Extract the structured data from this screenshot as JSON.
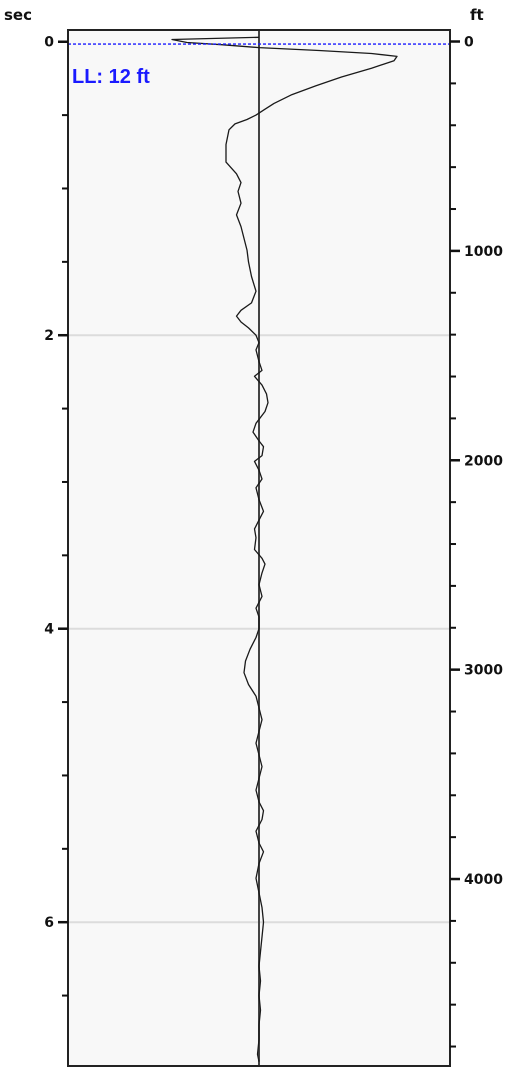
{
  "chart_data": {
    "type": "line",
    "title": "",
    "left_axis": {
      "unit": "sec",
      "range": [
        -0.08,
        6.98
      ],
      "major_ticks": [
        0,
        2,
        4,
        6
      ],
      "minor_ticks": [
        0.5,
        1,
        1.5,
        2.5,
        3,
        3.5,
        4.5,
        5,
        5.5,
        6.5
      ],
      "labels": [
        "0",
        "2",
        "4",
        "6"
      ]
    },
    "right_axis": {
      "unit": "ft",
      "range": [
        -55,
        4893
      ],
      "major_ticks": [
        0,
        1000,
        2000,
        3000,
        4000
      ],
      "minor_ticks": [
        200,
        400,
        600,
        800,
        1200,
        1400,
        1600,
        1800,
        2200,
        2400,
        2600,
        2800,
        3200,
        3400,
        3600,
        3800,
        4200,
        4400,
        4600,
        4800
      ],
      "labels": [
        "0",
        "1000",
        "2000",
        "3000",
        "4000"
      ]
    },
    "gridlines_sec": [
      2,
      4,
      6
    ],
    "center_line": 0,
    "level_line": {
      "depth_ft": 12,
      "label": "LL: 12 ft",
      "color": "#1a1aff"
    },
    "series": [
      {
        "amplitude_range": [
          -1,
          1
        ],
        "points": [
          [
            -0.03,
            0
          ],
          [
            -0.015,
            -0.58
          ],
          [
            0.005,
            -0.48
          ],
          [
            0.02,
            -0.25
          ],
          [
            0.04,
            0.0
          ],
          [
            0.06,
            0.4
          ],
          [
            0.08,
            0.75
          ],
          [
            0.1,
            0.92
          ],
          [
            0.13,
            0.9
          ],
          [
            0.18,
            0.75
          ],
          [
            0.24,
            0.55
          ],
          [
            0.3,
            0.38
          ],
          [
            0.36,
            0.22
          ],
          [
            0.42,
            0.1
          ],
          [
            0.46,
            0.04
          ],
          [
            0.5,
            -0.02
          ],
          [
            0.53,
            -0.08
          ],
          [
            0.56,
            -0.16
          ],
          [
            0.6,
            -0.2
          ],
          [
            0.7,
            -0.22
          ],
          [
            0.82,
            -0.22
          ],
          [
            0.9,
            -0.15
          ],
          [
            0.96,
            -0.12
          ],
          [
            1.02,
            -0.14
          ],
          [
            1.1,
            -0.12
          ],
          [
            1.18,
            -0.15
          ],
          [
            1.26,
            -0.12
          ],
          [
            1.34,
            -0.1
          ],
          [
            1.42,
            -0.08
          ],
          [
            1.5,
            -0.07
          ],
          [
            1.6,
            -0.05
          ],
          [
            1.7,
            -0.02
          ],
          [
            1.78,
            -0.05
          ],
          [
            1.83,
            -0.12
          ],
          [
            1.87,
            -0.15
          ],
          [
            1.91,
            -0.12
          ],
          [
            1.95,
            -0.07
          ],
          [
            2.0,
            -0.02
          ],
          [
            2.05,
            0.0
          ],
          [
            2.1,
            -0.02
          ],
          [
            2.18,
            0.0
          ],
          [
            2.24,
            0.02
          ],
          [
            2.28,
            -0.03
          ],
          [
            2.34,
            0.02
          ],
          [
            2.4,
            0.05
          ],
          [
            2.46,
            0.06
          ],
          [
            2.52,
            0.04
          ],
          [
            2.6,
            -0.02
          ],
          [
            2.66,
            -0.04
          ],
          [
            2.72,
            0.0
          ],
          [
            2.76,
            0.03
          ],
          [
            2.82,
            0.02
          ],
          [
            2.86,
            -0.03
          ],
          [
            2.92,
            0.0
          ],
          [
            2.98,
            0.02
          ],
          [
            3.04,
            -0.02
          ],
          [
            3.12,
            0.0
          ],
          [
            3.2,
            0.03
          ],
          [
            3.26,
            0.0
          ],
          [
            3.32,
            -0.03
          ],
          [
            3.38,
            -0.02
          ],
          [
            3.46,
            -0.03
          ],
          [
            3.52,
            0.02
          ],
          [
            3.56,
            0.04
          ],
          [
            3.62,
            0.02
          ],
          [
            3.7,
            0.0
          ],
          [
            3.78,
            0.02
          ],
          [
            3.86,
            -0.02
          ],
          [
            3.92,
            0.0
          ],
          [
            4.0,
            0.0
          ],
          [
            4.06,
            -0.02
          ],
          [
            4.14,
            -0.06
          ],
          [
            4.22,
            -0.09
          ],
          [
            4.3,
            -0.1
          ],
          [
            4.38,
            -0.07
          ],
          [
            4.46,
            -0.02
          ],
          [
            4.54,
            0.0
          ],
          [
            4.62,
            0.02
          ],
          [
            4.7,
            0.0
          ],
          [
            4.78,
            -0.02
          ],
          [
            4.86,
            0.0
          ],
          [
            4.94,
            0.02
          ],
          [
            5.02,
            0.0
          ],
          [
            5.1,
            -0.02
          ],
          [
            5.18,
            0.0
          ],
          [
            5.24,
            0.03
          ],
          [
            5.3,
            0.02
          ],
          [
            5.38,
            -0.02
          ],
          [
            5.46,
            0.0
          ],
          [
            5.52,
            0.03
          ],
          [
            5.6,
            0.0
          ],
          [
            5.7,
            -0.02
          ],
          [
            5.8,
            0.0
          ],
          [
            5.9,
            0.02
          ],
          [
            6.0,
            0.03
          ],
          [
            6.1,
            0.02
          ],
          [
            6.2,
            0.01
          ],
          [
            6.3,
            0.0
          ],
          [
            6.4,
            0.01
          ],
          [
            6.5,
            0.0
          ],
          [
            6.6,
            0.01
          ],
          [
            6.7,
            0.0
          ],
          [
            6.8,
            0.0
          ],
          [
            6.9,
            -0.01
          ],
          [
            6.95,
            0.0
          ]
        ]
      }
    ]
  }
}
